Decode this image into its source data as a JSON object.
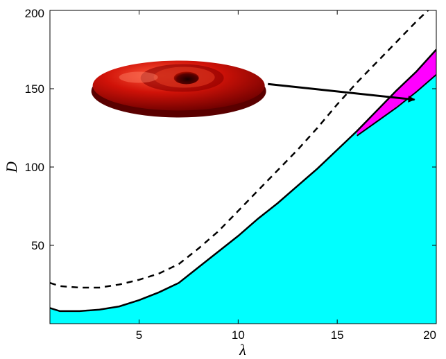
{
  "chart_data": {
    "type": "area",
    "xlabel": "λ",
    "ylabel": "D",
    "xlim": [
      0.5,
      20
    ],
    "ylim": [
      0,
      200
    ],
    "x_ticks": [
      5,
      10,
      15,
      20
    ],
    "y_ticks": [
      50,
      100,
      150,
      200
    ],
    "grid": false,
    "legend": "none",
    "series": [
      {
        "style": "solid",
        "fill": "#00ffff",
        "x": [
          0.5,
          1.0,
          2.0,
          3.0,
          4.0,
          5.0,
          6.0,
          7.0,
          8.0,
          9.0,
          10.0,
          11.0,
          12.0,
          13.0,
          14.0,
          15.0,
          16.0,
          17.0,
          18.0,
          19.0,
          20.0
        ],
        "y": [
          10,
          8,
          8,
          9,
          11,
          15,
          20,
          26,
          36,
          46,
          56,
          67,
          77,
          88,
          99,
          111,
          123,
          136,
          149,
          161,
          175
        ]
      },
      {
        "style": "dashed",
        "x": [
          0.5,
          1.0,
          2.0,
          3.0,
          4.0,
          5.0,
          6.0,
          7.0,
          8.0,
          9.0,
          10.0,
          11.0,
          12.0,
          13.0,
          14.0,
          15.0,
          16.0,
          17.0,
          18.0,
          19.0,
          20.0
        ],
        "y": [
          26,
          24,
          23,
          23,
          25,
          28,
          32,
          38,
          48,
          59,
          72,
          85,
          98,
          111,
          125,
          140,
          154,
          167,
          180,
          193,
          205
        ]
      },
      {
        "style": "solid",
        "fill": "#ff00ff",
        "region_lower": {
          "x": [
            16.0,
            17.0,
            18.0,
            19.0,
            20.0
          ],
          "y": [
            120,
            129,
            138,
            148,
            159
          ]
        }
      }
    ],
    "annotations": [
      {
        "type": "arrow",
        "from": [
          11.5,
          153
        ],
        "to": [
          18.9,
          143
        ],
        "label": ""
      },
      {
        "type": "image",
        "icon": "torus-icon",
        "color": "#cc1100",
        "center": [
          7.0,
          152
        ]
      }
    ]
  }
}
